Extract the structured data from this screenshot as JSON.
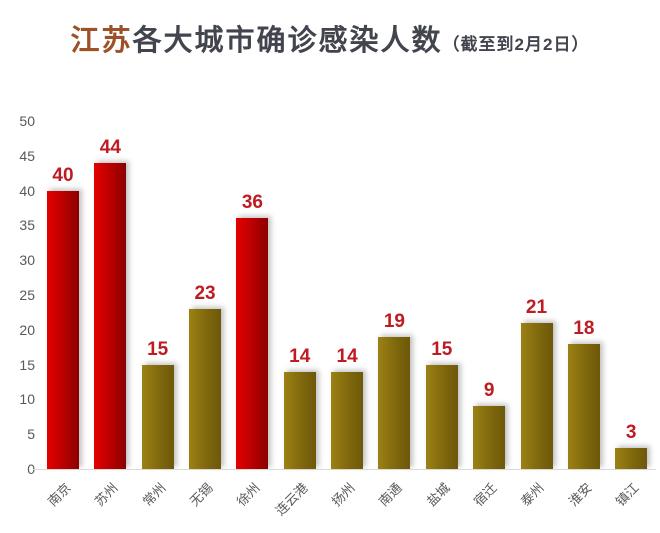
{
  "title": {
    "prefix": "江苏",
    "main": "各大城市确诊感染人数",
    "suffix": "（截至到2月2日）"
  },
  "chart_data": {
    "type": "bar",
    "title": "江苏各大城市确诊感染人数（截至到2月2日）",
    "categories": [
      "南京",
      "苏州",
      "常州",
      "无锡",
      "徐州",
      "连云港",
      "扬州",
      "南通",
      "盐城",
      "宿迁",
      "泰州",
      "淮安",
      "镇江"
    ],
    "values": [
      40,
      44,
      15,
      23,
      36,
      14,
      14,
      19,
      15,
      9,
      21,
      18,
      3
    ],
    "highlighted": [
      true,
      true,
      false,
      false,
      true,
      false,
      false,
      false,
      false,
      false,
      false,
      false,
      false
    ],
    "xlabel": "",
    "ylabel": "",
    "ylim": [
      0,
      50
    ],
    "yticks": [
      0,
      5,
      10,
      15,
      20,
      25,
      30,
      35,
      40,
      45,
      50
    ],
    "grid": false,
    "legend": null,
    "colors": {
      "highlight_bar": "#CC0000",
      "normal_bar": "#8A7010",
      "value_label": "#BE1B22",
      "axis_text": "#595959",
      "baseline": "#D9D9D9",
      "title_prefix": "#9D5126",
      "title_text": "#42454E",
      "background": "#FFFFFF"
    }
  }
}
